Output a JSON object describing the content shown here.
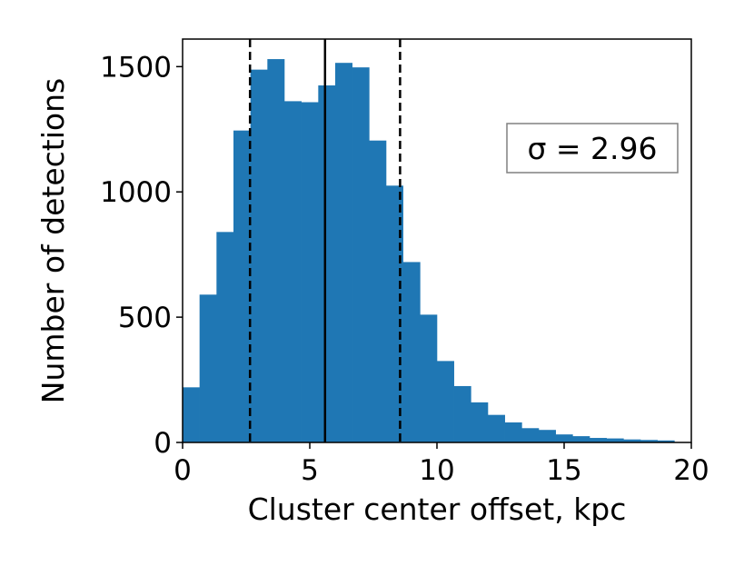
{
  "chart_data": {
    "type": "bar",
    "title": "",
    "xlabel": "Cluster center offset, kpc",
    "ylabel": "Number of detections",
    "xlim": [
      0,
      20
    ],
    "ylim": [
      0,
      1610
    ],
    "xticks": [
      "0",
      "5",
      "10",
      "15",
      "20"
    ],
    "yticks": [
      "0",
      "500",
      "1000",
      "1500"
    ],
    "bin_width": 0.667,
    "bin_starts": [
      0,
      0.667,
      1.333,
      2.0,
      2.667,
      3.333,
      4.0,
      4.667,
      5.333,
      6.0,
      6.667,
      7.333,
      8.0,
      8.667,
      9.333,
      10.0,
      10.667,
      11.333,
      12.0,
      12.667,
      13.333,
      14.0,
      14.667,
      15.333,
      16.0,
      16.667,
      17.333,
      18.0,
      18.667
    ],
    "values": [
      220,
      590,
      840,
      1245,
      1488,
      1530,
      1362,
      1358,
      1425,
      1515,
      1497,
      1205,
      1025,
      720,
      510,
      325,
      225,
      160,
      110,
      80,
      57,
      50,
      32,
      25,
      18,
      16,
      12,
      10,
      8
    ],
    "bar_color": "#1f77b4",
    "median": 5.6,
    "sigma_lines": [
      2.65,
      8.55
    ],
    "annotation": "σ = 2.96",
    "grid": false
  }
}
